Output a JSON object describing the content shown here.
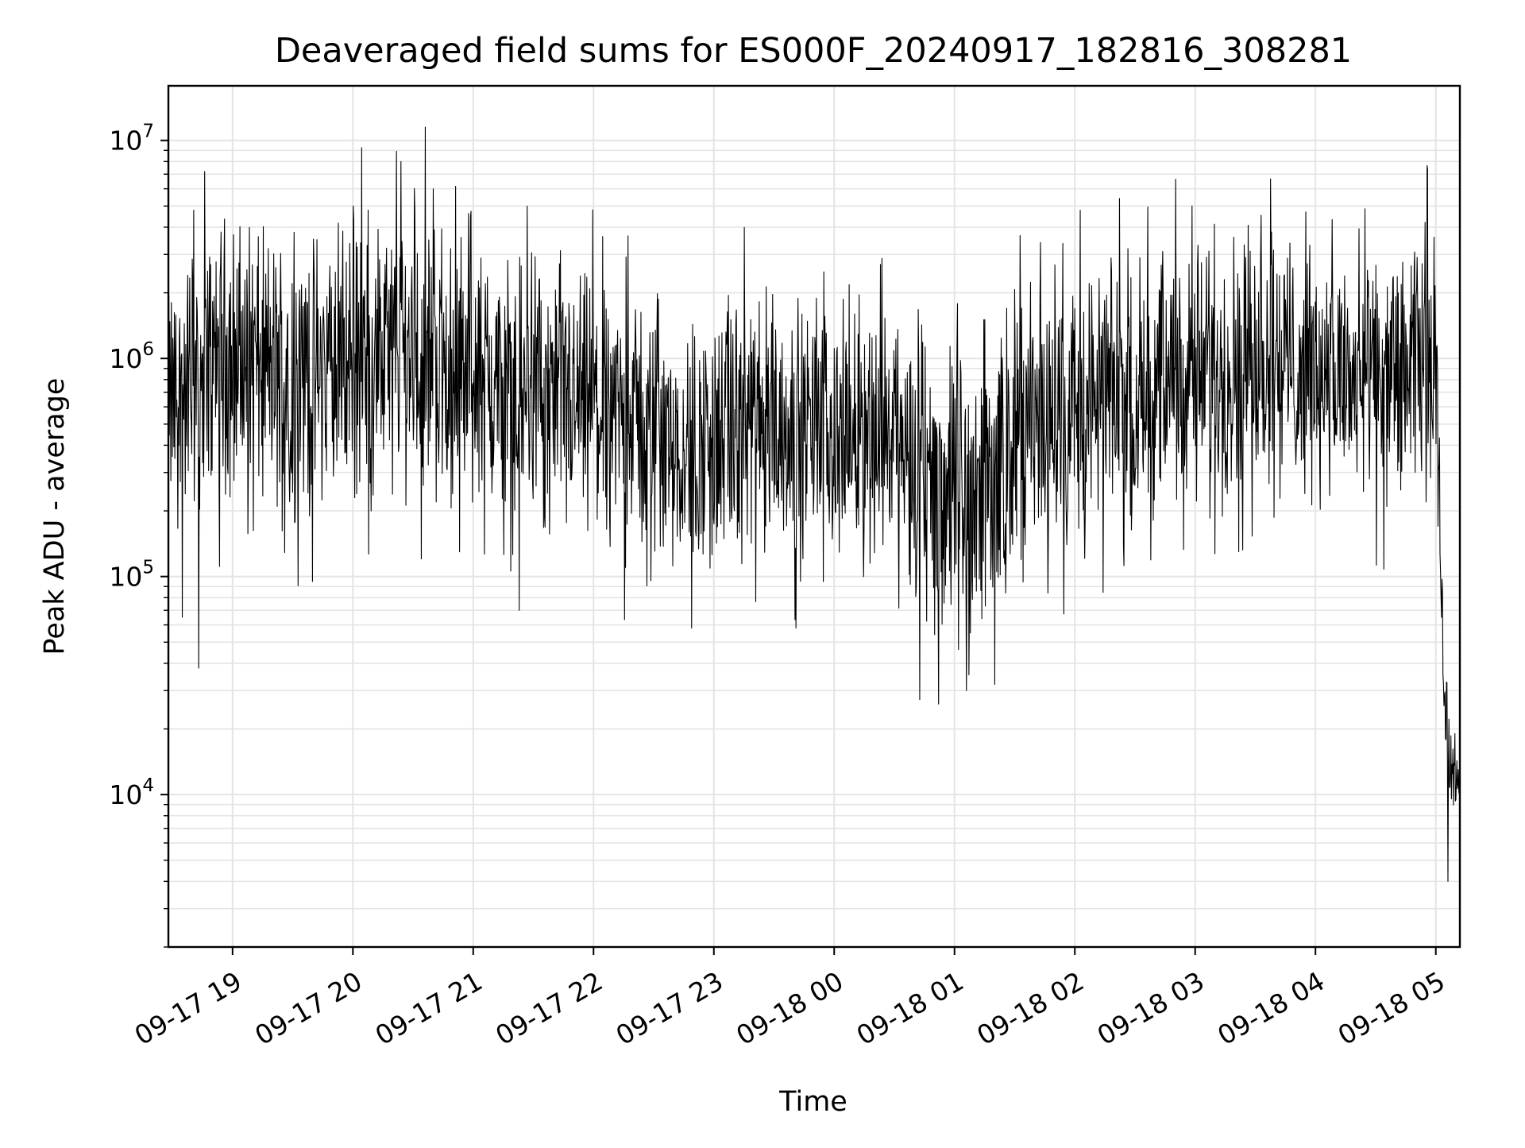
{
  "chart_data": {
    "type": "line",
    "title": "Deaveraged field sums for ES000F_20240917_182816_308281",
    "xlabel": "Time",
    "ylabel": "Peak ADU - average",
    "yscale": "log",
    "ylim": [
      2000,
      17800000
    ],
    "xlim": [
      "2024-09-17 18:28",
      "2024-09-18 05:12"
    ],
    "grid": true,
    "legend": false,
    "x_ticks": [
      "09-17 19",
      "09-17 20",
      "09-17 21",
      "09-17 22",
      "09-17 23",
      "09-18 00",
      "09-18 01",
      "09-18 02",
      "09-18 03",
      "09-18 04",
      "09-18 05"
    ],
    "y_ticks": [
      {
        "value": 10000,
        "base": "10",
        "exp": "4"
      },
      {
        "value": 100000,
        "base": "10",
        "exp": "5"
      },
      {
        "value": 1000000,
        "base": "10",
        "exp": "6"
      },
      {
        "value": 10000000,
        "base": "10",
        "exp": "7"
      }
    ],
    "series": [
      {
        "color": "#000000",
        "x": [
          "2024-09-17 18:28",
          "2024-09-17 18:35",
          "2024-09-17 18:40",
          "2024-09-17 18:45",
          "2024-09-17 18:50",
          "2024-09-17 18:55",
          "2024-09-17 19:00",
          "2024-09-17 19:10",
          "2024-09-17 19:20",
          "2024-09-17 19:30",
          "2024-09-17 19:40",
          "2024-09-17 19:50",
          "2024-09-17 20:00",
          "2024-09-17 20:10",
          "2024-09-17 20:20",
          "2024-09-17 20:30",
          "2024-09-17 20:40",
          "2024-09-17 20:50",
          "2024-09-17 21:00",
          "2024-09-17 21:10",
          "2024-09-17 21:20",
          "2024-09-17 21:30",
          "2024-09-17 21:40",
          "2024-09-17 21:50",
          "2024-09-17 22:00",
          "2024-09-17 22:10",
          "2024-09-17 22:20",
          "2024-09-17 22:30",
          "2024-09-17 22:40",
          "2024-09-17 22:50",
          "2024-09-17 23:00",
          "2024-09-17 23:10",
          "2024-09-17 23:20",
          "2024-09-17 23:30",
          "2024-09-17 23:40",
          "2024-09-17 23:50",
          "2024-09-18 00:00",
          "2024-09-18 00:10",
          "2024-09-18 00:20",
          "2024-09-18 00:30",
          "2024-09-18 00:40",
          "2024-09-18 00:50",
          "2024-09-18 01:00",
          "2024-09-18 01:10",
          "2024-09-18 01:20",
          "2024-09-18 01:30",
          "2024-09-18 01:40",
          "2024-09-18 01:50",
          "2024-09-18 02:00",
          "2024-09-18 02:10",
          "2024-09-18 02:20",
          "2024-09-18 02:30",
          "2024-09-18 02:40",
          "2024-09-18 02:50",
          "2024-09-18 03:00",
          "2024-09-18 03:10",
          "2024-09-18 03:20",
          "2024-09-18 03:30",
          "2024-09-18 03:40",
          "2024-09-18 03:50",
          "2024-09-18 04:00",
          "2024-09-18 04:10",
          "2024-09-18 04:20",
          "2024-09-18 04:30",
          "2024-09-18 04:40",
          "2024-09-18 04:50",
          "2024-09-18 04:55",
          "2024-09-18 05:00",
          "2024-09-18 05:03",
          "2024-09-18 05:06",
          "2024-09-18 05:09",
          "2024-09-18 05:12"
        ],
        "y": [
          600000,
          700000,
          800000,
          900000,
          1000000,
          1100000,
          1000000,
          900000,
          850000,
          800000,
          850000,
          900000,
          950000,
          1000000,
          1050000,
          1100000,
          1000000,
          900000,
          800000,
          750000,
          700000,
          650000,
          620000,
          600000,
          580000,
          560000,
          520000,
          480000,
          420000,
          380000,
          400000,
          450000,
          480000,
          500000,
          480000,
          460000,
          450000,
          460000,
          470000,
          440000,
          320000,
          250000,
          240000,
          260000,
          300000,
          400000,
          500000,
          550000,
          600000,
          650000,
          680000,
          700000,
          750000,
          800000,
          850000,
          900000,
          1000000,
          1100000,
          1000000,
          900000,
          850000,
          820000,
          800000,
          780000,
          800000,
          900000,
          1200000,
          1100000,
          60000,
          18000,
          14000,
          8000
        ],
        "noise_span_decades": [
          0.8,
          0.8,
          0.9,
          0.9,
          0.9,
          0.9,
          0.9,
          0.9,
          0.9,
          0.9,
          0.9,
          0.9,
          0.9,
          0.9,
          0.9,
          0.9,
          0.9,
          0.9,
          0.9,
          0.9,
          0.9,
          0.9,
          0.9,
          0.85,
          0.85,
          0.85,
          0.85,
          0.85,
          0.85,
          0.85,
          0.85,
          0.85,
          0.85,
          0.8,
          0.8,
          0.8,
          0.8,
          0.8,
          0.8,
          0.8,
          0.95,
          1.0,
          1.0,
          1.0,
          1.0,
          0.9,
          0.85,
          0.85,
          0.85,
          0.85,
          0.85,
          0.85,
          0.85,
          0.85,
          0.85,
          0.85,
          0.85,
          0.85,
          0.85,
          0.85,
          0.8,
          0.8,
          0.8,
          0.8,
          0.8,
          0.8,
          0.8,
          0.8,
          0.35,
          0.35,
          0.35,
          0.3
        ]
      }
    ],
    "extremes": [
      {
        "x": "2024-09-17 18:43",
        "y": 38000
      },
      {
        "x": "2024-09-17 18:46",
        "y": 7200000
      },
      {
        "x": "2024-09-17 18:35",
        "y": 65000
      },
      {
        "x": "2024-09-17 20:36",
        "y": 11500000
      },
      {
        "x": "2024-09-17 20:24",
        "y": 8000000
      },
      {
        "x": "2024-09-17 20:40",
        "y": 6000000
      },
      {
        "x": "2024-09-17 21:23",
        "y": 70000
      },
      {
        "x": "2024-09-17 21:27",
        "y": 5000000
      },
      {
        "x": "2024-09-17 22:49",
        "y": 58000
      },
      {
        "x": "2024-09-17 23:41",
        "y": 58000
      },
      {
        "x": "2024-09-18 00:23",
        "y": 2700000
      },
      {
        "x": "2024-09-18 00:52",
        "y": 26000
      },
      {
        "x": "2024-09-18 01:06",
        "y": 30000
      },
      {
        "x": "2024-09-18 01:20",
        "y": 32000
      },
      {
        "x": "2024-09-18 03:38",
        "y": 3800000
      },
      {
        "x": "2024-09-18 04:59",
        "y": 3600000
      },
      {
        "x": "2024-09-18 05:06",
        "y": 4000
      },
      {
        "x": "2024-09-18 05:12",
        "y": 6500
      }
    ]
  }
}
